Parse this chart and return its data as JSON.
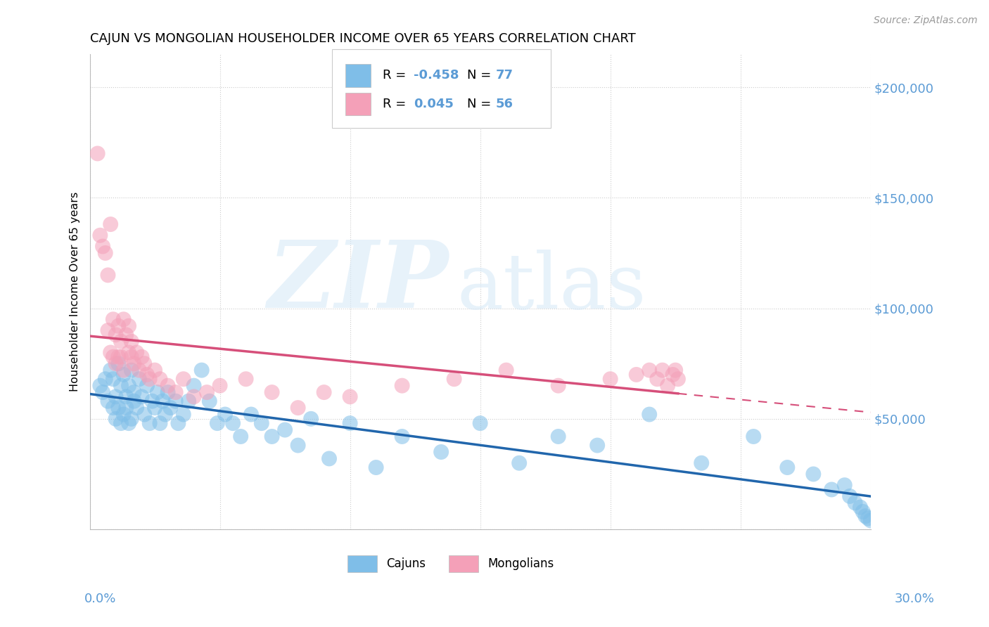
{
  "title": "CAJUN VS MONGOLIAN HOUSEHOLDER INCOME OVER 65 YEARS CORRELATION CHART",
  "source": "Source: ZipAtlas.com",
  "ylabel": "Householder Income Over 65 years",
  "xlim": [
    0.0,
    0.3
  ],
  "ylim": [
    0,
    215000
  ],
  "yticks": [
    0,
    50000,
    100000,
    150000,
    200000
  ],
  "ytick_labels_right": [
    "",
    "$50,000",
    "$100,000",
    "$150,000",
    "$200,000"
  ],
  "xticks": [
    0.0,
    0.05,
    0.1,
    0.15,
    0.2,
    0.25,
    0.3
  ],
  "cajun_color": "#7fbee8",
  "mongolian_color": "#f4a0b8",
  "cajun_line_color": "#2166ac",
  "mongolian_line_color": "#d64f7a",
  "axis_label_color": "#5b9bd5",
  "grid_color": "#cccccc",
  "background_color": "#ffffff",
  "cajun_R": -0.458,
  "cajun_N": 77,
  "mongolian_R": 0.045,
  "mongolian_N": 56,
  "cajun_x": [
    0.004,
    0.005,
    0.006,
    0.007,
    0.008,
    0.009,
    0.009,
    0.01,
    0.01,
    0.011,
    0.011,
    0.012,
    0.012,
    0.013,
    0.013,
    0.014,
    0.014,
    0.015,
    0.015,
    0.016,
    0.016,
    0.017,
    0.017,
    0.018,
    0.019,
    0.02,
    0.021,
    0.022,
    0.023,
    0.024,
    0.025,
    0.026,
    0.027,
    0.028,
    0.029,
    0.03,
    0.031,
    0.033,
    0.034,
    0.036,
    0.038,
    0.04,
    0.043,
    0.046,
    0.049,
    0.052,
    0.055,
    0.058,
    0.062,
    0.066,
    0.07,
    0.075,
    0.08,
    0.085,
    0.092,
    0.1,
    0.11,
    0.12,
    0.135,
    0.15,
    0.165,
    0.18,
    0.195,
    0.215,
    0.235,
    0.255,
    0.268,
    0.278,
    0.285,
    0.29,
    0.292,
    0.294,
    0.296,
    0.297,
    0.298,
    0.299,
    0.3
  ],
  "cajun_y": [
    65000,
    62000,
    68000,
    58000,
    72000,
    55000,
    68000,
    60000,
    50000,
    75000,
    55000,
    65000,
    48000,
    70000,
    52000,
    60000,
    55000,
    65000,
    48000,
    72000,
    50000,
    58000,
    62000,
    55000,
    68000,
    60000,
    52000,
    65000,
    48000,
    58000,
    55000,
    62000,
    48000,
    58000,
    52000,
    62000,
    55000,
    58000,
    48000,
    52000,
    58000,
    65000,
    72000,
    58000,
    48000,
    52000,
    48000,
    42000,
    52000,
    48000,
    42000,
    45000,
    38000,
    50000,
    32000,
    48000,
    28000,
    42000,
    35000,
    48000,
    30000,
    42000,
    38000,
    52000,
    30000,
    42000,
    28000,
    25000,
    18000,
    20000,
    15000,
    12000,
    10000,
    8000,
    6000,
    5000,
    4000
  ],
  "mongolian_x": [
    0.003,
    0.004,
    0.005,
    0.006,
    0.007,
    0.007,
    0.008,
    0.008,
    0.009,
    0.009,
    0.01,
    0.01,
    0.011,
    0.011,
    0.012,
    0.012,
    0.013,
    0.013,
    0.014,
    0.015,
    0.015,
    0.016,
    0.016,
    0.017,
    0.018,
    0.019,
    0.02,
    0.021,
    0.022,
    0.023,
    0.025,
    0.027,
    0.03,
    0.033,
    0.036,
    0.04,
    0.045,
    0.05,
    0.06,
    0.07,
    0.08,
    0.09,
    0.1,
    0.12,
    0.14,
    0.16,
    0.18,
    0.2,
    0.21,
    0.215,
    0.218,
    0.22,
    0.222,
    0.224,
    0.225,
    0.226
  ],
  "mongolian_y": [
    170000,
    133000,
    128000,
    125000,
    115000,
    90000,
    138000,
    80000,
    95000,
    78000,
    88000,
    75000,
    92000,
    78000,
    85000,
    78000,
    95000,
    72000,
    88000,
    80000,
    92000,
    78000,
    85000,
    75000,
    80000,
    72000,
    78000,
    75000,
    70000,
    68000,
    72000,
    68000,
    65000,
    62000,
    68000,
    60000,
    62000,
    65000,
    68000,
    62000,
    55000,
    62000,
    60000,
    65000,
    68000,
    72000,
    65000,
    68000,
    70000,
    72000,
    68000,
    72000,
    65000,
    70000,
    72000,
    68000
  ]
}
